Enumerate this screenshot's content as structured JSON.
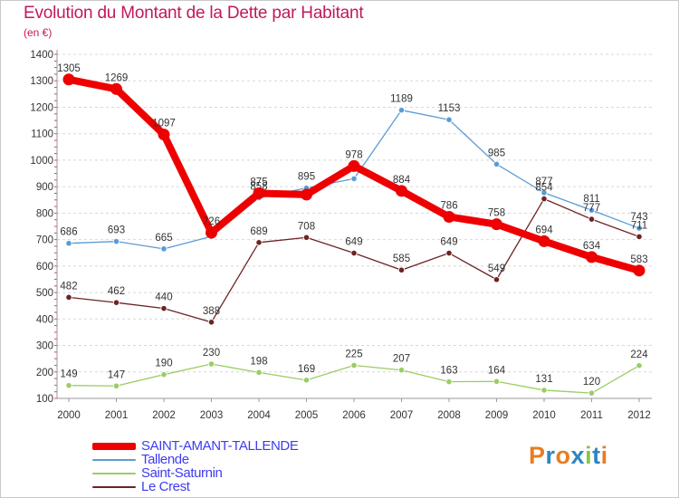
{
  "header": {
    "title": "Evolution du Montant de la Dette par Habitant",
    "subtitle": "(en €)"
  },
  "logo": {
    "text": "Proxiti",
    "colors": [
      "#e67e22",
      "#2e86c1",
      "#e67e22",
      "#2e86c1",
      "#8bc34a",
      "#2e86c1",
      "#e67e22"
    ]
  },
  "chart_data": {
    "type": "line",
    "x": [
      "2000",
      "2001",
      "2002",
      "2003",
      "2004",
      "2005",
      "2006",
      "2007",
      "2008",
      "2009",
      "2010",
      "2011",
      "2012"
    ],
    "ylim": [
      100,
      1400
    ],
    "yticks": [
      100,
      200,
      300,
      400,
      500,
      600,
      700,
      800,
      900,
      1000,
      1100,
      1200,
      1300,
      1400
    ],
    "grid": "horizontal dashed",
    "legend_position": "bottom-left",
    "series": [
      {
        "name": "Tallende",
        "color": "#5b9bd5",
        "values": [
          686,
          693,
          665,
          712,
          858,
          895,
          930,
          1189,
          1153,
          985,
          877,
          811,
          743
        ],
        "labels": [
          "686",
          "693",
          "665",
          "",
          "858",
          "895",
          "",
          "1189",
          "1153",
          "985",
          "877",
          "811",
          "743"
        ]
      },
      {
        "name": "Saint-Saturnin",
        "color": "#9ccc65",
        "values": [
          149,
          147,
          190,
          230,
          198,
          169,
          225,
          207,
          163,
          164,
          131,
          120,
          224
        ],
        "labels": [
          "149",
          "147",
          "190",
          "230",
          "198",
          "169",
          "225",
          "207",
          "163",
          "164",
          "131",
          "120",
          "224"
        ]
      },
      {
        "name": "Le Crest",
        "color": "#6d2323",
        "values": [
          482,
          462,
          440,
          388,
          689,
          708,
          649,
          585,
          649,
          549,
          854,
          777,
          711
        ],
        "labels": [
          "482",
          "462",
          "440",
          "388",
          "689",
          "708",
          "649",
          "585",
          "649",
          "549",
          "854",
          "777",
          "711"
        ]
      },
      {
        "name": "SAINT-AMANT-TALLENDE",
        "color": "#ee0000",
        "values": [
          1305,
          1269,
          1097,
          726,
          875,
          870,
          978,
          884,
          786,
          758,
          694,
          634,
          583
        ],
        "labels": [
          "1305",
          "1269",
          "1097",
          "726",
          "875",
          "",
          "978",
          "884",
          "786",
          "758",
          "694",
          "634",
          "583"
        ]
      }
    ],
    "legend": [
      {
        "name": "SAINT-AMANT-TALLENDE",
        "color": "#ee0000"
      },
      {
        "name": "Tallende",
        "color": "#5b9bd5"
      },
      {
        "name": "Saint-Saturnin",
        "color": "#9ccc65"
      },
      {
        "name": "Le Crest",
        "color": "#6d2323"
      }
    ]
  }
}
